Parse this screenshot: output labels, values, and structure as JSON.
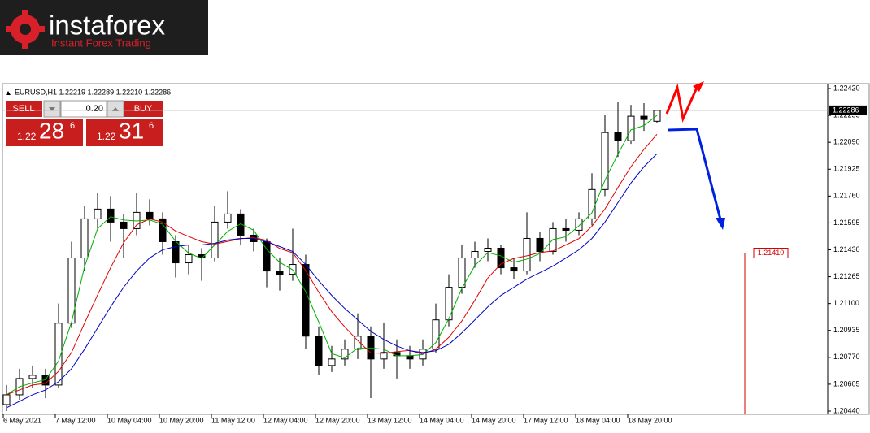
{
  "logo": {
    "brand": "instaforex",
    "tagline": "Instant Forex Trading"
  },
  "trade_panel": {
    "sell_label": "SELL",
    "buy_label": "BUY",
    "volume": "0.20",
    "sell_price": {
      "big_figure": "1.22",
      "pips": "28",
      "fraction": "6"
    },
    "buy_price": {
      "big_figure": "1.22",
      "pips": "31",
      "fraction": "6"
    }
  },
  "chart_data": {
    "type": "candlestick",
    "title": "EURUSD,H1  1.22219 1.22289 1.22210 1.22286",
    "categories": [
      "6 May 2021",
      null,
      null,
      null,
      "7 May 12:00",
      null,
      null,
      null,
      "10 May 04:00",
      null,
      null,
      null,
      "10 May 20:00",
      null,
      null,
      null,
      "11 May 12:00",
      null,
      null,
      null,
      "12 May 04:00",
      null,
      null,
      null,
      "12 May 20:00",
      null,
      null,
      null,
      "13 May 12:00",
      null,
      null,
      null,
      "14 May 04:00",
      null,
      null,
      null,
      "14 May 20:00",
      null,
      null,
      null,
      "17 May 12:00",
      null,
      null,
      null,
      "18 May 04:00",
      null,
      null,
      null,
      "18 May 20:00",
      null,
      null
    ],
    "open": [
      1.2048,
      1.2054,
      1.2064,
      1.2066,
      1.206,
      1.2098,
      1.2138,
      1.2162,
      1.2168,
      1.216,
      1.2156,
      1.2166,
      1.2162,
      1.2148,
      1.2135,
      1.214,
      1.2138,
      1.216,
      1.2165,
      1.2152,
      1.2148,
      1.213,
      1.2128,
      1.2134,
      1.209,
      1.2072,
      1.2076,
      1.2082,
      1.209,
      1.2076,
      1.208,
      1.2078,
      1.2076,
      1.2082,
      1.21,
      1.212,
      1.2138,
      1.2142,
      1.2144,
      1.2132,
      1.213,
      1.215,
      1.2142,
      1.2156,
      1.2155,
      1.2162,
      1.218,
      1.2215,
      1.221,
      1.2225,
      1.22219
    ],
    "high": [
      1.206,
      1.207,
      1.2072,
      1.207,
      1.211,
      1.2148,
      1.217,
      1.2178,
      1.2176,
      1.2165,
      1.2178,
      1.2174,
      1.2166,
      1.2152,
      1.2146,
      1.2144,
      1.217,
      1.2179,
      1.2168,
      1.2156,
      1.215,
      1.2138,
      1.2156,
      1.214,
      1.2096,
      1.2084,
      1.2088,
      1.2104,
      1.2096,
      1.2098,
      1.2088,
      1.2084,
      1.2088,
      1.211,
      1.2128,
      1.2146,
      1.2148,
      1.215,
      1.2146,
      1.2138,
      1.2166,
      1.2154,
      1.216,
      1.2162,
      1.2166,
      1.219,
      1.2226,
      1.2234,
      1.2232,
      1.2233,
      1.22289
    ],
    "low": [
      1.2044,
      1.2051,
      1.2058,
      1.2052,
      1.2058,
      1.2095,
      1.213,
      1.2156,
      1.2148,
      1.2138,
      1.2152,
      1.2158,
      1.214,
      1.2126,
      1.2128,
      1.2124,
      1.2136,
      1.2156,
      1.2146,
      1.2142,
      1.212,
      1.2118,
      1.2124,
      1.2082,
      1.2066,
      1.2068,
      1.2072,
      1.2076,
      1.2052,
      1.207,
      1.2064,
      1.207,
      1.2072,
      1.208,
      1.2096,
      1.2116,
      1.2132,
      1.2136,
      1.2128,
      1.2125,
      1.2128,
      1.2136,
      1.214,
      1.2148,
      1.2152,
      1.2158,
      1.2176,
      1.22,
      1.2208,
      1.2216,
      1.2221
    ],
    "close": [
      1.2054,
      1.2064,
      1.2066,
      1.206,
      1.2098,
      1.2138,
      1.2162,
      1.2168,
      1.216,
      1.2156,
      1.2166,
      1.2162,
      1.2148,
      1.2135,
      1.214,
      1.2138,
      1.216,
      1.2165,
      1.2152,
      1.2148,
      1.213,
      1.2128,
      1.2134,
      1.209,
      1.2072,
      1.2076,
      1.2082,
      1.209,
      1.2076,
      1.208,
      1.2078,
      1.2076,
      1.2082,
      1.21,
      1.212,
      1.2138,
      1.2142,
      1.2144,
      1.2132,
      1.213,
      1.215,
      1.2142,
      1.2156,
      1.2155,
      1.2162,
      1.218,
      1.2215,
      1.221,
      1.2225,
      1.2223,
      1.22286
    ],
    "up_color": "#ffffff",
    "down_color": "#000000",
    "candle_outline": "#000000",
    "series": [
      {
        "color": "#00b000",
        "values": [
          1.2054,
          1.2059,
          1.20613,
          1.20633,
          1.20747,
          1.20987,
          1.21327,
          1.2156,
          1.21633,
          1.21613,
          1.21607,
          1.21613,
          1.21587,
          1.21483,
          1.2141,
          1.21377,
          1.2146,
          1.21543,
          1.2159,
          1.2155,
          1.21433,
          1.21353,
          1.21307,
          1.21173,
          1.20987,
          1.20793,
          1.20767,
          1.20827,
          1.20827,
          1.2082,
          1.2078,
          1.2078,
          1.20787,
          1.2086,
          1.21007,
          1.21193,
          1.21333,
          1.21413,
          1.21393,
          1.21353,
          1.21373,
          1.21407,
          1.21493,
          1.2151,
          1.21577,
          1.21657,
          1.21857,
          1.22017,
          1.22167,
          1.22193,
          1.22255
        ]
      },
      {
        "color": "#e00000",
        "values": [
          1.2054,
          1.2057,
          1.206,
          1.2061,
          1.20684,
          1.208,
          1.2098,
          1.21153,
          1.2132,
          1.21473,
          1.21583,
          1.2162,
          1.216,
          1.21545,
          1.21512,
          1.2148,
          1.21465,
          1.21482,
          1.21498,
          1.21505,
          1.21488,
          1.21438,
          1.21412,
          1.21303,
          1.2117,
          1.2105,
          1.20957,
          1.20873,
          1.20797,
          1.20795,
          1.20805,
          1.20813,
          1.2079,
          1.2082,
          1.20893,
          1.20993,
          1.2112,
          1.21257,
          1.21343,
          1.21377,
          1.21393,
          1.21413,
          1.21423,
          1.2146,
          1.21499,
          1.21575,
          1.2168,
          1.21813,
          1.2194,
          1.22047,
          1.22139
        ]
      },
      {
        "color": "#0000c8",
        "values": [
          1.2046,
          1.205,
          1.2054,
          1.2057,
          1.2062,
          1.207,
          1.2082,
          1.2095,
          1.2108,
          1.212,
          1.213,
          1.2138,
          1.2143,
          1.2145,
          1.2146,
          1.2146,
          1.2147,
          1.2149,
          1.215,
          1.215,
          1.2148,
          1.2145,
          1.2142,
          1.2134,
          1.2124,
          1.2115,
          1.2107,
          1.21,
          1.2093,
          1.2088,
          1.2084,
          1.2081,
          1.208,
          1.2081,
          1.2085,
          1.2092,
          1.21,
          1.2108,
          1.2115,
          1.212,
          1.2125,
          1.2129,
          1.2133,
          1.2138,
          1.2143,
          1.215,
          1.216,
          1.2172,
          1.2184,
          1.2194,
          1.2202
        ]
      }
    ],
    "ylim": [
      1.2042,
      1.2245
    ],
    "yticks": [
      {
        "value": 1.2242,
        "label": "1.22420"
      },
      1.22255,
      {
        "value": 1.2209,
        "label": "1.22090"
      },
      1.21925,
      {
        "value": 1.2176,
        "label": "1.21760"
      },
      1.21595,
      {
        "value": 1.2143,
        "label": "1.21430"
      },
      1.21265,
      {
        "value": 1.211,
        "label": "1.21100"
      },
      1.20935,
      {
        "value": 1.2077,
        "label": "1.20770"
      },
      1.20605,
      {
        "value": 1.2044,
        "label": "1.20440"
      }
    ],
    "current_price": 1.22286,
    "level": {
      "value": 1.2141,
      "label": "1.21410",
      "color": "#d00000"
    }
  }
}
